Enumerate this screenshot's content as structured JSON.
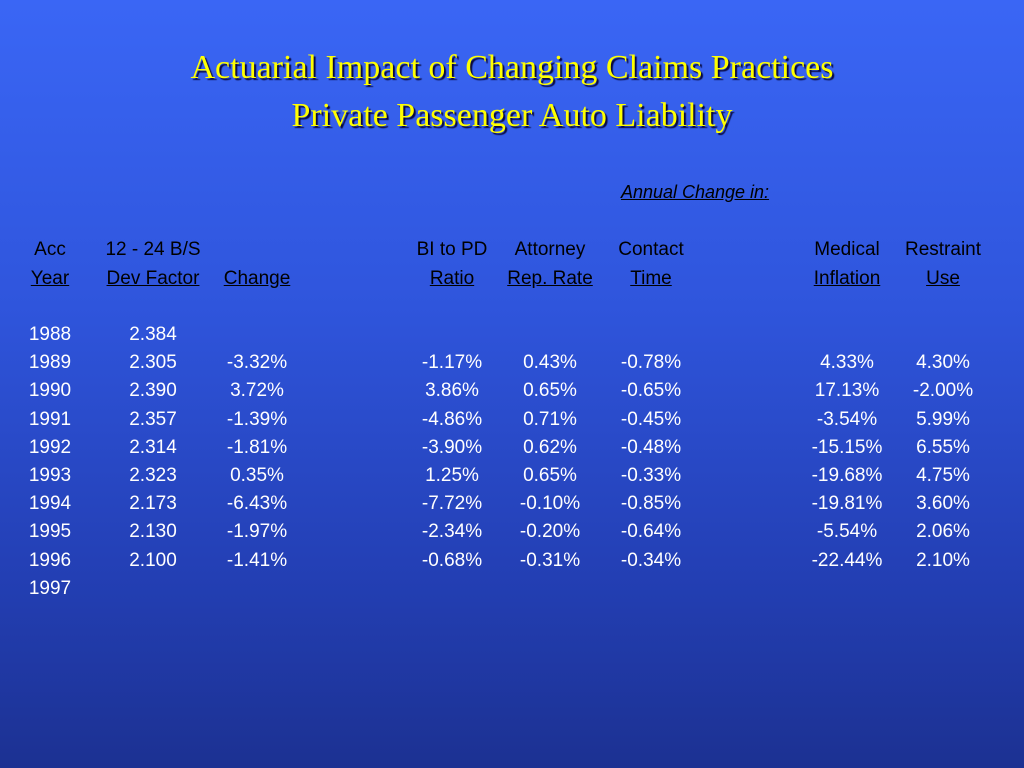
{
  "title": {
    "line1": "Actuarial Impact of Changing Claims Practices",
    "line2": "Private Passenger Auto Liability"
  },
  "annual_change_label": "Annual Change in:",
  "headers": {
    "row1": [
      "Acc",
      "12 - 24  B/S",
      "",
      "BI to PD",
      "Attorney",
      "Contact",
      "Medical",
      "Restraint"
    ],
    "row2": [
      "Year",
      "Dev Factor",
      "Change",
      "Ratio",
      "Rep. Rate",
      "Time",
      "Inflation",
      "Use"
    ]
  },
  "rows": [
    [
      "1988",
      "2.384",
      "",
      "",
      "",
      "",
      "",
      ""
    ],
    [
      "1989",
      "2.305",
      "-3.32%",
      "-1.17%",
      "0.43%",
      "-0.78%",
      "4.33%",
      "4.30%"
    ],
    [
      "1990",
      "2.390",
      "3.72%",
      "3.86%",
      "0.65%",
      "-0.65%",
      "17.13%",
      "-2.00%"
    ],
    [
      "1991",
      "2.357",
      "-1.39%",
      "-4.86%",
      "0.71%",
      "-0.45%",
      "-3.54%",
      "5.99%"
    ],
    [
      "1992",
      "2.314",
      "-1.81%",
      "-3.90%",
      "0.62%",
      "-0.48%",
      "-15.15%",
      "6.55%"
    ],
    [
      "1993",
      "2.323",
      "0.35%",
      "1.25%",
      "0.65%",
      "-0.33%",
      "-19.68%",
      "4.75%"
    ],
    [
      "1994",
      "2.173",
      "-6.43%",
      "-7.72%",
      "-0.10%",
      "-0.85%",
      "-19.81%",
      "3.60%"
    ],
    [
      "1995",
      "2.130",
      "-1.97%",
      "-2.34%",
      "-0.20%",
      "-0.64%",
      "-5.54%",
      "2.06%"
    ],
    [
      "1996",
      "2.100",
      "-1.41%",
      "-0.68%",
      "-0.31%",
      "-0.34%",
      "-22.44%",
      "2.10%"
    ],
    [
      "1997",
      "",
      "",
      "",
      "",
      "",
      "",
      ""
    ]
  ]
}
